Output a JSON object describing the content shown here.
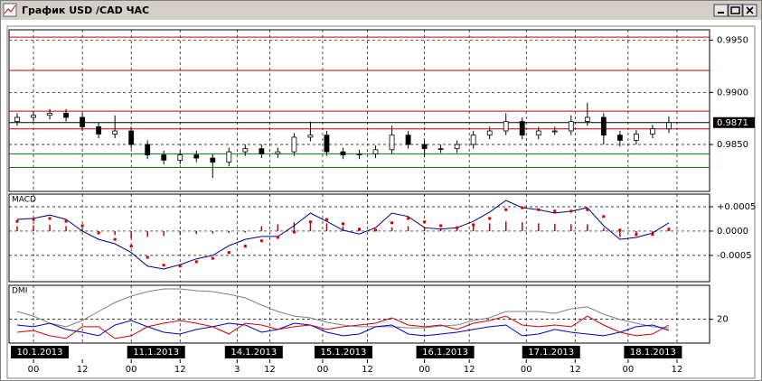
{
  "window": {
    "title": "График USD /CAD ЧАС"
  },
  "chart_data": [
    {
      "type": "candlestick",
      "x": [
        -4,
        0,
        4,
        8,
        12,
        16,
        20,
        24,
        28,
        32,
        36,
        40,
        44,
        48,
        52,
        56,
        60,
        64,
        68,
        72,
        76,
        80,
        84,
        88,
        92,
        96,
        100,
        104,
        108,
        112,
        116,
        120,
        124,
        128,
        132,
        136,
        140,
        144,
        148,
        152,
        156
      ],
      "open": [
        0.9872,
        0.9876,
        0.9878,
        0.988,
        0.9876,
        0.9867,
        0.986,
        0.9863,
        0.985,
        0.984,
        0.9835,
        0.984,
        0.9837,
        0.9833,
        0.9843,
        0.9846,
        0.9841,
        0.9843,
        0.9857,
        0.9859,
        0.9843,
        0.984,
        0.9841,
        0.9845,
        0.9859,
        0.985,
        0.9846,
        0.9846,
        0.985,
        0.9859,
        0.9863,
        0.9872,
        0.9859,
        0.9863,
        0.9863,
        0.9872,
        0.9876,
        0.9859,
        0.9854,
        0.986,
        0.9865
      ],
      "high": [
        0.988,
        0.9882,
        0.9884,
        0.9884,
        0.988,
        0.9871,
        0.9878,
        0.9867,
        0.9854,
        0.9844,
        0.9844,
        0.9844,
        0.9841,
        0.9847,
        0.985,
        0.985,
        0.9847,
        0.9861,
        0.9872,
        0.9863,
        0.9847,
        0.9845,
        0.9849,
        0.9868,
        0.9863,
        0.9854,
        0.985,
        0.9854,
        0.9863,
        0.9867,
        0.988,
        0.9876,
        0.9867,
        0.9867,
        0.9878,
        0.989,
        0.988,
        0.9863,
        0.9864,
        0.9869,
        0.9877
      ],
      "low": [
        0.9868,
        0.9872,
        0.9874,
        0.9872,
        0.9863,
        0.9856,
        0.9856,
        0.9846,
        0.9836,
        0.9831,
        0.9831,
        0.9833,
        0.9818,
        0.9829,
        0.9839,
        0.9837,
        0.9837,
        0.9839,
        0.9853,
        0.9839,
        0.9836,
        0.9836,
        0.9837,
        0.9841,
        0.9846,
        0.9838,
        0.9842,
        0.9842,
        0.9846,
        0.9855,
        0.9859,
        0.9855,
        0.9855,
        0.9859,
        0.9859,
        0.9868,
        0.985,
        0.9848,
        0.985,
        0.9856,
        0.9861
      ],
      "close": [
        0.9876,
        0.9878,
        0.988,
        0.9876,
        0.9867,
        0.986,
        0.9863,
        0.985,
        0.984,
        0.9835,
        0.984,
        0.9837,
        0.9833,
        0.9843,
        0.9846,
        0.9841,
        0.9843,
        0.9857,
        0.9859,
        0.9843,
        0.984,
        0.9841,
        0.9845,
        0.9859,
        0.985,
        0.9846,
        0.9846,
        0.985,
        0.9859,
        0.9863,
        0.9872,
        0.9859,
        0.9863,
        0.9863,
        0.9872,
        0.9876,
        0.9859,
        0.9854,
        0.986,
        0.9865,
        0.9871
      ],
      "xlim": [
        -6,
        166
      ],
      "ylim": [
        0.9805,
        0.996
      ],
      "yticks": [
        {
          "value": 0.995,
          "label": "0.9950"
        },
        {
          "value": 0.99,
          "label": "0.9900"
        },
        {
          "value": 0.985,
          "label": "0.9850"
        }
      ],
      "levels": [
        {
          "value": 0.9953,
          "color": "#c00000"
        },
        {
          "value": 0.9921,
          "color": "#c00000"
        },
        {
          "value": 0.9882,
          "color": "#c00000"
        },
        {
          "value": 0.9865,
          "color": "#c00000"
        },
        {
          "value": 0.9841,
          "color": "#008000"
        },
        {
          "value": 0.9828,
          "color": "#008000"
        }
      ],
      "last_price": 0.9871,
      "grid": true
    },
    {
      "type": "macd",
      "title": "MACD",
      "x": [
        -4,
        0,
        4,
        8,
        12,
        16,
        20,
        24,
        28,
        32,
        36,
        40,
        44,
        48,
        52,
        56,
        60,
        64,
        68,
        72,
        76,
        80,
        84,
        88,
        92,
        96,
        100,
        104,
        108,
        112,
        116,
        120,
        124,
        128,
        132,
        136,
        140,
        144,
        148,
        152,
        156
      ],
      "series": [
        {
          "style": "bar",
          "color": "#c00000",
          "values": [
            0.0001,
            0.00012,
            0.00013,
            0.0001,
            5e-05,
            -2e-05,
            -8e-05,
            -0.00015,
            -0.00012,
            -0.0001,
            -8e-05,
            -6e-05,
            -5e-05,
            -4e-05,
            -3e-05,
            0.0001,
            0.00014,
            0.00018,
            0.0002,
            0.00016,
            0.0001,
            6e-05,
            4e-05,
            8e-05,
            0.0001,
            8e-05,
            6e-05,
            8e-05,
            0.00012,
            0.00016,
            0.0002,
            0.00018,
            0.00016,
            0.00015,
            0.00014,
            0.00014,
            6e-05,
            -0.00012,
            -0.0001,
            -6e-05,
            3e-05
          ]
        },
        {
          "style": "line",
          "color": "#000080",
          "values": [
            0.00024,
            0.00026,
            0.00033,
            0.00024,
            0.0,
            -0.00017,
            -0.00026,
            -0.00044,
            -0.00072,
            -0.00078,
            -0.00069,
            -0.00057,
            -0.0005,
            -0.0003,
            -0.00017,
            -0.00011,
            -0.00011,
            0.00011,
            0.00037,
            0.0002,
            2e-05,
            -6e-05,
            7e-05,
            0.00037,
            0.0003,
            7e-05,
            4e-05,
            7e-05,
            0.0002,
            0.00039,
            0.00063,
            0.00048,
            0.00044,
            0.00037,
            0.00041,
            0.00048,
            0.00011,
            -0.00017,
            -0.00013,
            -4e-05,
            0.00017
          ]
        },
        {
          "style": "dots",
          "color": "#d00000",
          "values": [
            0.0002,
            0.00024,
            0.00026,
            0.0002,
            0.00011,
            -4e-05,
            -0.00017,
            -0.00031,
            -0.00054,
            -0.0007,
            -0.00072,
            -0.00063,
            -0.00056,
            -0.00044,
            -0.00031,
            -0.0002,
            -0.00013,
            -2e-05,
            0.00019,
            0.00024,
            0.00015,
            4e-05,
            2e-05,
            0.00017,
            0.00026,
            0.00019,
            0.00011,
            7e-05,
            0.00013,
            0.00026,
            0.00044,
            0.00048,
            0.00044,
            0.00041,
            0.00041,
            0.00044,
            0.0003,
            2e-05,
            -7e-05,
            -7e-05,
            4e-05
          ]
        }
      ],
      "xlim": [
        -6,
        166
      ],
      "ylim": [
        -0.00104,
        0.00076
      ],
      "yticks": [
        {
          "value": 0.0005,
          "label": "+0.0005"
        },
        {
          "value": 0,
          "label": "0.0000"
        },
        {
          "value": -0.0005,
          "label": "-0.0005"
        }
      ],
      "grid": true
    },
    {
      "type": "line",
      "title": "DMI",
      "x": [
        -4,
        0,
        4,
        8,
        12,
        16,
        20,
        24,
        28,
        32,
        36,
        40,
        44,
        48,
        52,
        56,
        60,
        64,
        68,
        72,
        76,
        80,
        84,
        88,
        92,
        96,
        100,
        104,
        108,
        112,
        116,
        120,
        124,
        128,
        132,
        136,
        140,
        144,
        148,
        152,
        156
      ],
      "series": [
        {
          "style": "line",
          "color": "#808080",
          "values": [
            24.6,
            21.9,
            17.7,
            15.6,
            19.3,
            24.6,
            29.9,
            33.6,
            36.3,
            37.9,
            37.9,
            36.8,
            36.3,
            34.7,
            32.6,
            28.3,
            24.6,
            21.9,
            20.9,
            18.2,
            16.6,
            15.6,
            15.6,
            15.6,
            15.0,
            15.0,
            16.1,
            16.6,
            19.3,
            20.9,
            24.6,
            24.6,
            24.6,
            23.5,
            26.2,
            27.3,
            23.0,
            19.8,
            17.7,
            15.6,
            15.0
          ]
        },
        {
          "style": "line",
          "color": "#0000c0",
          "values": [
            16.6,
            15.6,
            17.7,
            14.0,
            12.4,
            10.3,
            16.6,
            19.3,
            15.6,
            12.4,
            11.3,
            14.0,
            15.6,
            17.7,
            16.6,
            12.4,
            14.0,
            17.7,
            16.6,
            12.4,
            10.3,
            11.3,
            15.6,
            16.6,
            11.3,
            10.3,
            11.3,
            12.4,
            14.0,
            15.6,
            16.6,
            10.3,
            11.3,
            14.0,
            12.4,
            11.3,
            10.3,
            12.4,
            15.6,
            16.6,
            13.5
          ]
        },
        {
          "style": "line",
          "color": "#d00000",
          "values": [
            12.4,
            13.4,
            10.3,
            8.7,
            15.6,
            15.6,
            8.7,
            10.3,
            15.6,
            17.7,
            19.3,
            17.7,
            15.6,
            11.3,
            17.7,
            16.6,
            14.0,
            15.6,
            16.6,
            14.0,
            15.6,
            16.6,
            17.7,
            20.9,
            16.6,
            15.6,
            16.6,
            14.0,
            17.7,
            19.3,
            21.9,
            16.6,
            15.6,
            16.6,
            15.6,
            21.9,
            16.6,
            12.4,
            10.3,
            11.3,
            16.6
          ]
        }
      ],
      "xlim": [
        -6,
        166
      ],
      "ylim": [
        6,
        40
      ],
      "yticks": [
        20
      ],
      "xticks": [
        {
          "value": 0,
          "label": "00"
        },
        {
          "value": 12,
          "label": "12"
        },
        {
          "value": 24,
          "label": "00"
        },
        {
          "value": 36,
          "label": "12"
        },
        {
          "value": 50,
          "label": "3"
        },
        {
          "value": 58,
          "label": "12"
        },
        {
          "value": 71,
          "label": "00"
        },
        {
          "value": 82,
          "label": "12"
        },
        {
          "value": 96,
          "label": "00"
        },
        {
          "value": 107,
          "label": "12"
        },
        {
          "value": 121,
          "label": "00"
        },
        {
          "value": 133,
          "label": "12"
        },
        {
          "value": 146,
          "label": "00"
        },
        {
          "value": 158,
          "label": "12"
        }
      ],
      "date_labels": [
        {
          "value": -6,
          "label": "10.1.2013"
        },
        {
          "value": 23,
          "label": "11.1.2013"
        },
        {
          "value": 47,
          "label": "14.1.2013"
        },
        {
          "value": 69,
          "label": "15.1.2013"
        },
        {
          "value": 94,
          "label": "16.1.2013"
        },
        {
          "value": 120,
          "label": "17.1.2013"
        },
        {
          "value": 145,
          "label": "18.1.2013"
        }
      ],
      "grid": true
    }
  ]
}
